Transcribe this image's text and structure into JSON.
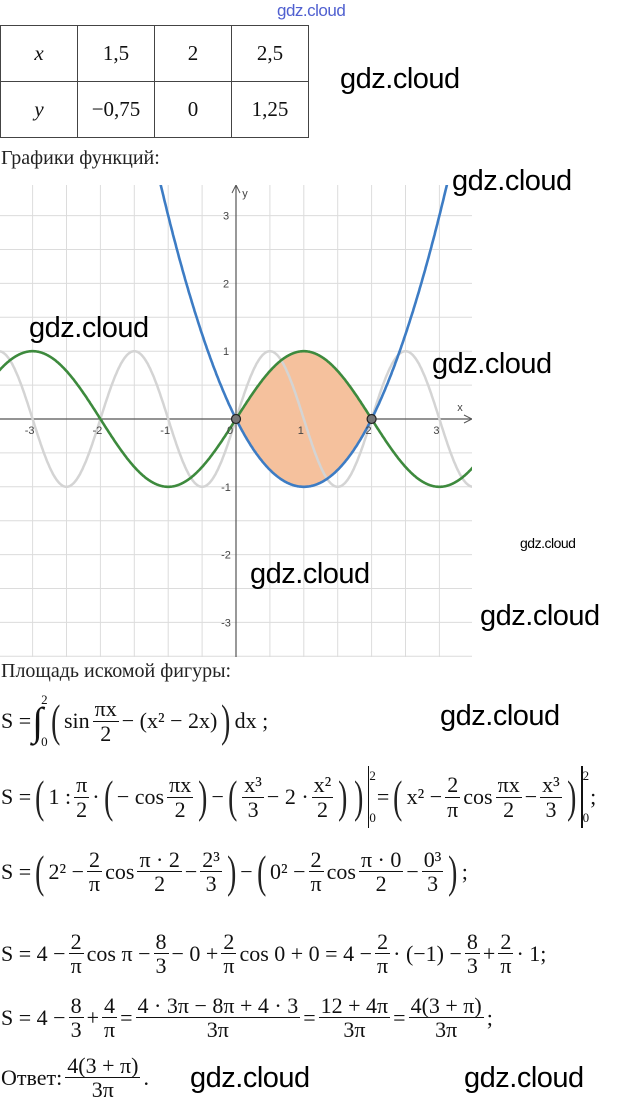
{
  "watermarks": [
    "gdz.cloud",
    "gdz.cloud",
    "gdz.cloud",
    "gdz.cloud",
    "gdz.cloud",
    "gdz.cloud",
    "gdz.cloud",
    "gdz.cloud",
    "gdz.cloud",
    "gdz.cloud"
  ],
  "table": {
    "rows": [
      [
        "x",
        "1,5",
        "2",
        "2,5"
      ],
      [
        "y",
        "−0,75",
        "0",
        "1,25"
      ]
    ]
  },
  "graphs_heading": "Графики функций:",
  "area_heading": "Площадь искомой фигуры:",
  "chart_data": {
    "type": "line",
    "xlim": [
      -3.5,
      3.5
    ],
    "ylim": [
      -3.45,
      3.45
    ],
    "grid": true,
    "grid_step": 0.5,
    "x_axis_label": "x",
    "y_axis_label": "y",
    "x_ticks": [
      "-3",
      "-2",
      "-1",
      "0",
      "1",
      "2",
      "3"
    ],
    "y_ticks": [
      "3",
      "2",
      "1",
      "-1",
      "-2",
      "-3"
    ],
    "series": [
      {
        "expr": "sin(πx)",
        "color": "#d4d4d4"
      },
      {
        "expr": "x^2 - 2x",
        "color": "#3d7cc4"
      },
      {
        "expr": "sin(πx/2)",
        "color": "#3d8a3d"
      }
    ],
    "shaded_region": {
      "between": [
        "sin(πx/2)",
        "x^2 - 2x"
      ],
      "x_range": [
        0,
        2
      ],
      "color": "#f5c19d"
    },
    "points": [
      [
        0,
        0
      ],
      [
        2,
        0
      ]
    ]
  },
  "formulas": [
    [
      "S =",
      {
        "int": [
          "0",
          "2"
        ]
      },
      {
        "big": "("
      },
      "sin",
      {
        "f": [
          "πx",
          "2"
        ]
      },
      "− (x² − 2x)",
      {
        "big": ")"
      },
      "dx ;"
    ],
    [
      "S =",
      {
        "big": "("
      },
      "1 :",
      {
        "f": [
          "π",
          "2"
        ]
      },
      "·",
      {
        "big": "("
      },
      "− cos",
      {
        "f": [
          "πx",
          "2"
        ]
      },
      {
        "big": ")"
      },
      "−",
      {
        "big": "("
      },
      {
        "f": [
          "x³",
          "3"
        ]
      },
      "− 2 ·",
      {
        "f": [
          "x²",
          "2"
        ]
      },
      {
        "big": ")"
      },
      {
        "big": ")"
      },
      {
        "eval": [
          "0",
          "2"
        ]
      },
      "=",
      {
        "big": "("
      },
      "x² −",
      {
        "f": [
          "2",
          "π"
        ]
      },
      "cos",
      {
        "f": [
          "πx",
          "2"
        ]
      },
      "−",
      {
        "f": [
          "x³",
          "3"
        ]
      },
      {
        "big": ")"
      },
      {
        "eval": [
          "0",
          "2"
        ]
      },
      ";"
    ],
    [
      "S =",
      {
        "big": "("
      },
      "2² −",
      {
        "f": [
          "2",
          "π"
        ]
      },
      "cos",
      {
        "f": [
          "π · 2",
          "2"
        ]
      },
      "−",
      {
        "f": [
          "2³",
          "3"
        ]
      },
      {
        "big": ")"
      },
      "−",
      {
        "big": "("
      },
      "0² −",
      {
        "f": [
          "2",
          "π"
        ]
      },
      "cos",
      {
        "f": [
          "π · 0",
          "2"
        ]
      },
      "−",
      {
        "f": [
          "0³",
          "3"
        ]
      },
      {
        "big": ")"
      },
      ";"
    ],
    [
      "S = 4 −",
      {
        "f": [
          "2",
          "π"
        ]
      },
      "cos π −",
      {
        "f": [
          "8",
          "3"
        ]
      },
      "− 0 +",
      {
        "f": [
          "2",
          "π"
        ]
      },
      "cos 0 + 0 = 4 −",
      {
        "f": [
          "2",
          "π"
        ]
      },
      "· (−1) −",
      {
        "f": [
          "8",
          "3"
        ]
      },
      "+",
      {
        "f": [
          "2",
          "π"
        ]
      },
      "· 1;"
    ],
    [
      "S = 4 −",
      {
        "f": [
          "8",
          "3"
        ]
      },
      "+",
      {
        "f": [
          "4",
          "π"
        ]
      },
      "=",
      {
        "f": [
          "4 · 3π − 8π + 4 · 3",
          "3π"
        ]
      },
      "=",
      {
        "f": [
          "12 + 4π",
          "3π"
        ]
      },
      "=",
      {
        "f": [
          "4(3 + π)",
          "3π"
        ]
      },
      ";"
    ]
  ],
  "answer": [
    "Ответ:",
    {
      "f": [
        "4(3 + π)",
        "3π"
      ]
    },
    "."
  ]
}
